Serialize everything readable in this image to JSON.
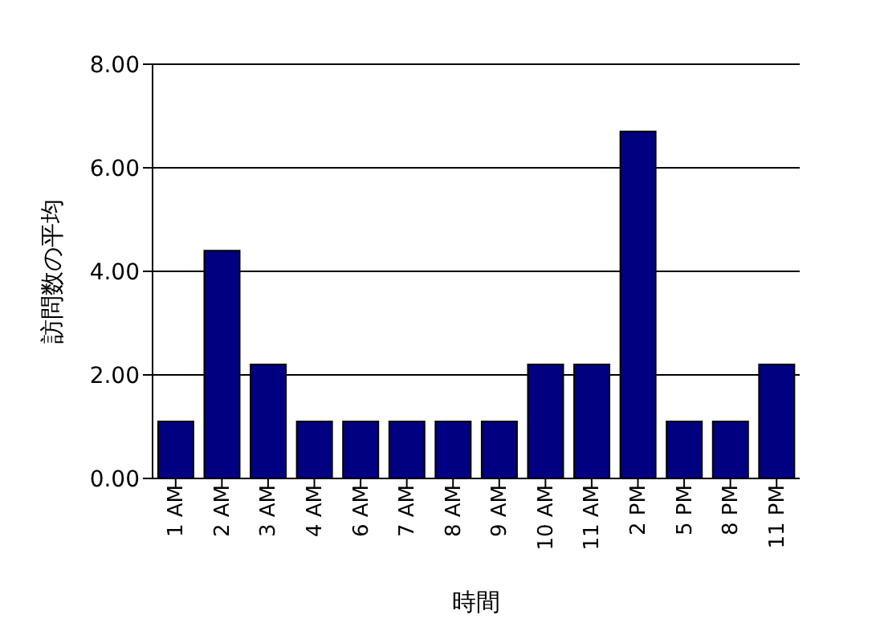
{
  "chart_data": {
    "type": "bar",
    "xlabel": "時間",
    "ylabel": "訪問数の平均",
    "categories": [
      "1 AM",
      "2 AM",
      "3 AM",
      "4 AM",
      "6 AM",
      "7 AM",
      "8 AM",
      "9 AM",
      "10 AM",
      "11 AM",
      "2 PM",
      "5 PM",
      "8 PM",
      "11 PM"
    ],
    "series": [
      {
        "color": "#000080",
        "values": [
          1.1,
          4.4,
          2.2,
          1.1,
          1.1,
          1.1,
          1.1,
          1.1,
          2.2,
          2.2,
          6.7,
          1.1,
          1.1,
          2.2
        ]
      }
    ],
    "ylim": [
      0,
      8
    ],
    "yticks": [
      {
        "value": 0,
        "label": "0.00"
      },
      {
        "value": 2,
        "label": "2.00"
      },
      {
        "value": 4,
        "label": "4.00"
      },
      {
        "value": 6,
        "label": "6.00"
      },
      {
        "value": 8,
        "label": "8.00"
      }
    ],
    "grid": "y",
    "legend": false
  }
}
